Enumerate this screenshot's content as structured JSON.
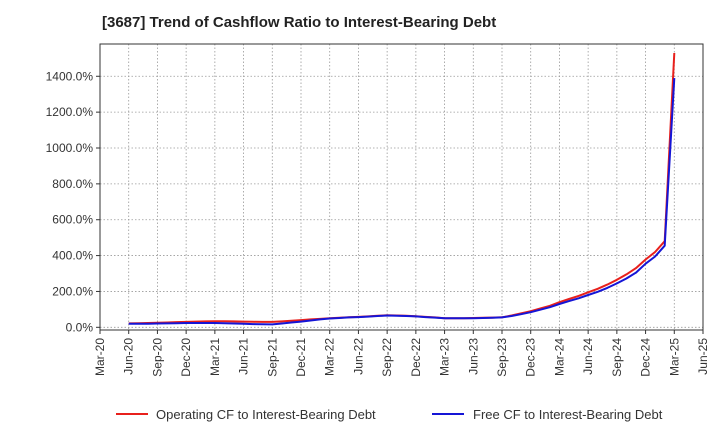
{
  "chart_data": {
    "type": "line",
    "title": "[3687]  Trend of Cashflow Ratio to Interest-Bearing Debt",
    "xlabel": "",
    "ylabel": "",
    "x_ticks": [
      "Mar-20",
      "Jun-20",
      "Sep-20",
      "Dec-20",
      "Mar-21",
      "Jun-21",
      "Sep-21",
      "Dec-21",
      "Mar-22",
      "Jun-22",
      "Sep-22",
      "Dec-22",
      "Mar-23",
      "Jun-23",
      "Sep-23",
      "Dec-23",
      "Mar-24",
      "Jun-24",
      "Sep-24",
      "Dec-24",
      "Mar-25",
      "Jun-25"
    ],
    "y_ticks": [
      "0.0%",
      "200.0%",
      "400.0%",
      "600.0%",
      "800.0%",
      "1000.0%",
      "1200.0%",
      "1400.0%"
    ],
    "ylim": [
      -15,
      1580
    ],
    "grid": true,
    "legend_position": "bottom",
    "colors": {
      "operating": "#e8201c",
      "free": "#1515d6"
    },
    "series": [
      {
        "name": "Operating CF to Interest-Bearing Debt",
        "x": [
          "Jun-20",
          "Jul-20",
          "Aug-20",
          "Sep-20",
          "Oct-20",
          "Nov-20",
          "Dec-20",
          "Jan-21",
          "Feb-21",
          "Mar-21",
          "Apr-21",
          "May-21",
          "Jun-21",
          "Jul-21",
          "Aug-21",
          "Sep-21",
          "Oct-21",
          "Nov-21",
          "Dec-21",
          "Jan-22",
          "Feb-22",
          "Mar-22",
          "Apr-22",
          "May-22",
          "Jun-22",
          "Jul-22",
          "Aug-22",
          "Sep-22",
          "Oct-22",
          "Nov-22",
          "Dec-22",
          "Jan-23",
          "Feb-23",
          "Mar-23",
          "Apr-23",
          "May-23",
          "Jun-23",
          "Jul-23",
          "Aug-23",
          "Sep-23",
          "Oct-23",
          "Nov-23",
          "Dec-23",
          "Jan-24",
          "Feb-24",
          "Mar-24",
          "Apr-24",
          "May-24",
          "Jun-24",
          "Jul-24",
          "Aug-24",
          "Sep-24",
          "Oct-24",
          "Nov-24",
          "Dec-24",
          "Jan-25",
          "Feb-25",
          "Mar-25"
        ],
        "values": [
          22,
          23,
          24,
          25,
          27,
          29,
          30,
          32,
          33,
          34,
          34,
          33,
          32,
          31,
          30,
          30,
          33,
          37,
          40,
          44,
          47,
          50,
          53,
          56,
          58,
          61,
          64,
          67,
          66,
          64,
          62,
          58,
          55,
          50,
          50,
          51,
          52,
          53,
          54,
          56,
          66,
          78,
          90,
          105,
          120,
          140,
          158,
          175,
          195,
          215,
          238,
          265,
          295,
          330,
          378,
          420,
          480,
          1530
        ]
      },
      {
        "name": "Free CF to Interest-Bearing Debt",
        "x": [
          "Jun-20",
          "Jul-20",
          "Aug-20",
          "Sep-20",
          "Oct-20",
          "Nov-20",
          "Dec-20",
          "Jan-21",
          "Feb-21",
          "Mar-21",
          "Apr-21",
          "May-21",
          "Jun-21",
          "Jul-21",
          "Aug-21",
          "Sep-21",
          "Oct-21",
          "Nov-21",
          "Dec-21",
          "Jan-22",
          "Feb-22",
          "Mar-22",
          "Apr-22",
          "May-22",
          "Jun-22",
          "Jul-22",
          "Aug-22",
          "Sep-22",
          "Oct-22",
          "Nov-22",
          "Dec-22",
          "Jan-23",
          "Feb-23",
          "Mar-23",
          "Apr-23",
          "May-23",
          "Jun-23",
          "Jul-23",
          "Aug-23",
          "Sep-23",
          "Oct-23",
          "Nov-23",
          "Dec-23",
          "Jan-24",
          "Feb-24",
          "Mar-24",
          "Apr-24",
          "May-24",
          "Jun-24",
          "Jul-24",
          "Aug-24",
          "Sep-24",
          "Oct-24",
          "Nov-24",
          "Dec-24",
          "Jan-25",
          "Feb-25",
          "Mar-25"
        ],
        "values": [
          20,
          20,
          20,
          21,
          22,
          23,
          24,
          24,
          24,
          24,
          23,
          21,
          20,
          18,
          17,
          16,
          21,
          27,
          32,
          38,
          44,
          49,
          52,
          55,
          57,
          60,
          63,
          66,
          65,
          63,
          61,
          57,
          54,
          50,
          50,
          50,
          51,
          52,
          53,
          55,
          63,
          73,
          84,
          98,
          112,
          130,
          146,
          162,
          180,
          198,
          220,
          245,
          272,
          305,
          355,
          395,
          455,
          1390
        ]
      }
    ]
  }
}
